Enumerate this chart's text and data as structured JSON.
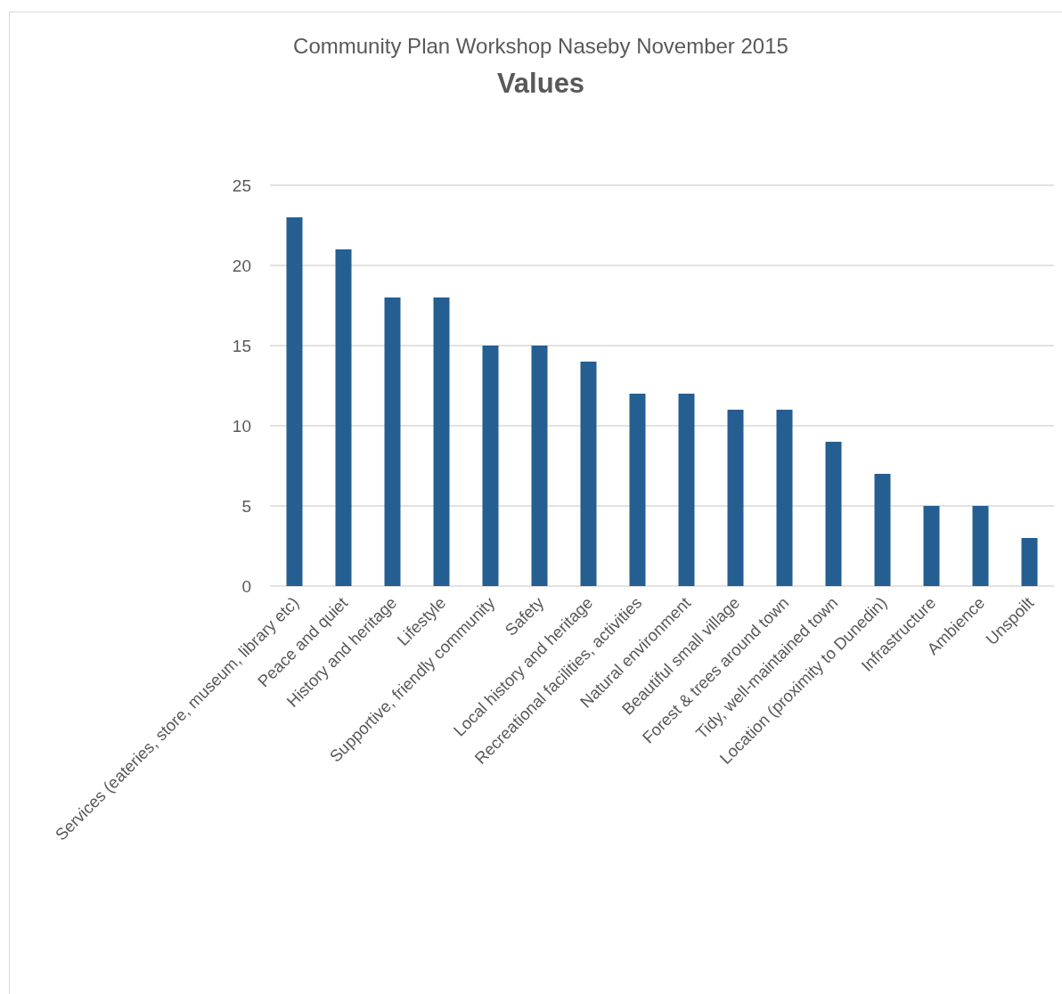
{
  "chart_data": {
    "type": "bar",
    "subtitle": "Community Plan Workshop Naseby November 2015",
    "title": "Values",
    "categories": [
      "Services (eateries, store, museum, library etc)",
      "Peace and quiet",
      "History and heritage",
      "Lifestyle",
      "Supportive, friendly community",
      "Safety",
      "Local history and heritage",
      "Recreational facilities, activities",
      "Natural environment",
      "Beautiful small village",
      "Forest & trees around town",
      "Tidy, well-maintained town",
      "Location (proximity to Dunedin)",
      "Infrastructure",
      "Ambience",
      "Unspoilt"
    ],
    "values": [
      23,
      21,
      18,
      18,
      15,
      15,
      14,
      12,
      12,
      11,
      11,
      9,
      7,
      5,
      5,
      3
    ],
    "color": "#255e91",
    "ylim": [
      0,
      25
    ],
    "yticks": [
      0,
      5,
      10,
      15,
      20,
      25
    ],
    "grid": "y"
  }
}
